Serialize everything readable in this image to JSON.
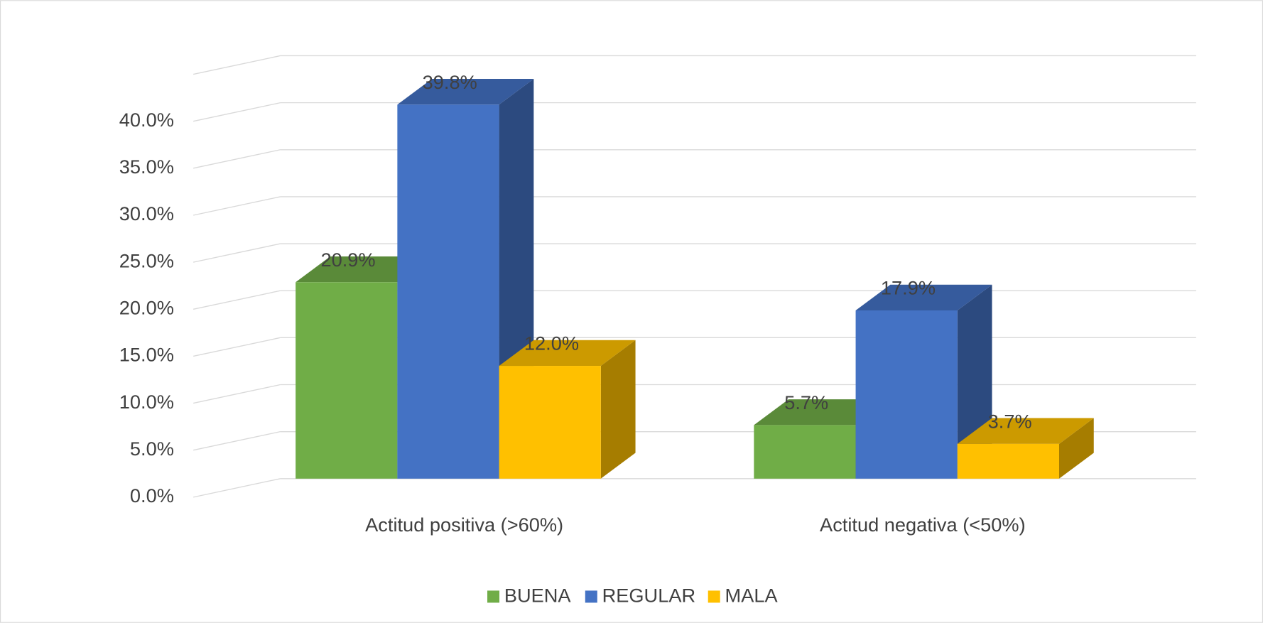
{
  "chart_data": {
    "type": "bar3d",
    "categories": [
      "Actitud positiva (>60%)",
      "Actitud negativa (<50%)"
    ],
    "series": [
      {
        "name": "BUENA",
        "color": "#70ad47",
        "values": [
          20.9,
          5.7
        ],
        "value_labels": [
          "20.9%",
          "5.7%"
        ]
      },
      {
        "name": "REGULAR",
        "color": "#4472c4",
        "values": [
          39.8,
          17.9
        ],
        "value_labels": [
          "39.8%",
          "17.9%"
        ]
      },
      {
        "name": "MALA",
        "color": "#ffc000",
        "values": [
          12.0,
          3.7
        ],
        "value_labels": [
          "12.0%",
          "3.7%"
        ]
      }
    ],
    "ylim": [
      0,
      45
    ],
    "yticks": [
      {
        "value": 0,
        "label": "0.0%"
      },
      {
        "value": 5,
        "label": "5.0%"
      },
      {
        "value": 10,
        "label": "10.0%"
      },
      {
        "value": 15,
        "label": "15.0%"
      },
      {
        "value": 20,
        "label": "20.0%"
      },
      {
        "value": 25,
        "label": "25.0%"
      },
      {
        "value": 30,
        "label": "30.0%"
      },
      {
        "value": 35,
        "label": "35.0%"
      },
      {
        "value": 40,
        "label": "40.0%"
      }
    ],
    "grid": true,
    "legend": "bottom"
  }
}
